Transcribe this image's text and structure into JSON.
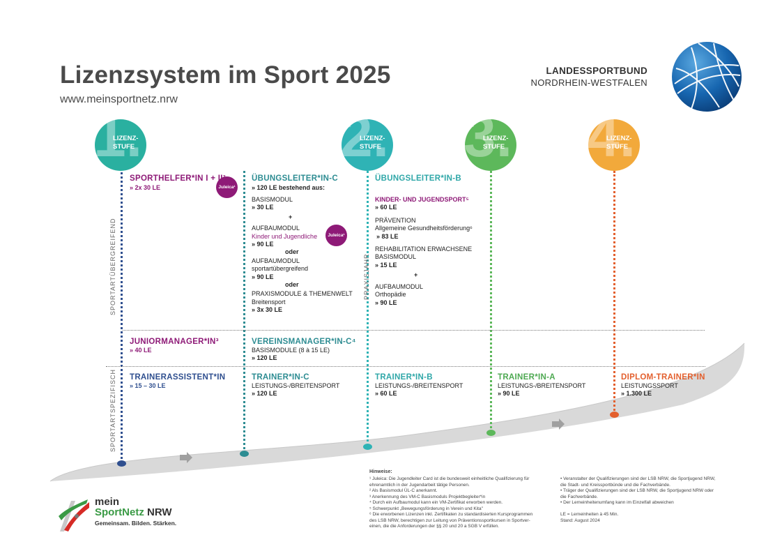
{
  "header": {
    "title": "Lizenzsystem im Sport 2025",
    "url": "www.meinsportnetz.nrw",
    "org_line1": "LANDESSPORTBUND",
    "org_line2": "NORDRHEIN-WESTFALEN"
  },
  "stages": [
    {
      "number": "1.",
      "label1": "LIZENZ-",
      "label2": "STUFE",
      "color": "#2ab0a0"
    },
    {
      "number": "2.",
      "label1": "LIZENZ-",
      "label2": "STUFE",
      "color": "#2fb3b5"
    },
    {
      "number": "3.",
      "label1": "LIZENZ-",
      "label2": "STUFE",
      "color": "#5db85b"
    },
    {
      "number": "4.",
      "label1": "LIZENZ-",
      "label2": "STUFE",
      "color": "#f2a93b"
    }
  ],
  "side_labels": {
    "general": "SPORTARTÜBERGREIFEND",
    "specific": "SPORTARTSPEZIFISCH",
    "practice": "PRAXISJAHR"
  },
  "juleica": "Juleica¹",
  "col1": {
    "sporthelfer_title": "SPORTHELFER*IN I + II²",
    "sporthelfer_le": "» 2x 30 LE",
    "junior_title": "JUNIORMANAGER*IN³",
    "junior_le": "» 40 LE",
    "assist_title": "TRAINERASSISTENT*IN",
    "assist_le": "» 15 – 30 LE"
  },
  "col2": {
    "title": "ÜBUNGSLEITER*IN-C",
    "sub": "» 120 LE bestehend aus:",
    "basis": "BASISMODUL",
    "basis_le": "» 30 LE",
    "plus": "+",
    "aufbau": "AUFBAUMODUL",
    "aufbau_kj": "Kinder und Jugendliche",
    "aufbau_le": "» 90 LE",
    "oder1": "oder",
    "aufbau2": "AUFBAUMODUL",
    "aufbau2_sub": "sportartübergreifend",
    "aufbau2_le": "» 90 LE",
    "oder2": "oder",
    "praxis": "PRAXISMODULE & THEMENWELT",
    "praxis_sub": "Breitensport",
    "praxis_le": "» 3x 30 LE",
    "vm_title": "VEREINSMANAGER*IN-C⁴",
    "vm_sub": "BASISMODULE (8 à 15 LE)",
    "vm_le": "» 120 LE",
    "tc_title": "TRAINER*IN-C",
    "tc_sub": "LEISTUNGS-/BREITENSPORT",
    "tc_le": "» 120 LE"
  },
  "col3": {
    "title": "ÜBUNGSLEITER*IN-B",
    "kj": "KINDER- UND JUGENDSPORT⁵",
    "kj_le": "» 60 LE",
    "prev": "PRÄVENTION",
    "prev_sub": "Allgemeine Gesundheitsförderung⁶",
    "prev_le": "» 83 LE",
    "reha": "REHABILITATION ERWACHSENE",
    "reha_sub": "BASISMODUL",
    "reha_le": "» 15 LE",
    "plus": "+",
    "aufbau": "AUFBAUMODUL",
    "aufbau_sub": "Orthopädie",
    "aufbau_le": "» 90 LE",
    "tb_title": "TRAINER*IN-B",
    "tb_sub": "LEISTUNGS-/BREITENSPORT",
    "tb_le": "» 60 LE"
  },
  "col4": {
    "title": "TRAINER*IN-A",
    "sub": "LEISTUNGS-/BREITENSPORT",
    "le": "» 90 LE"
  },
  "col5": {
    "title": "DIPLOM-TRAINER*IN",
    "sub": "LEISTUNGSSPORT",
    "le": "» 1.300 LE"
  },
  "footnotes": {
    "heading": "Hinweise:",
    "left": [
      "¹  Juleica: Die Jugendleiter Card ist die bundesweit einheitliche Qualifizierung für",
      "    ehrenamtlich in der Jugendarbeit tätige Personen.",
      "²  Als Basismodul ÜL-C anerkannt.",
      "³  Anerkennung des VM-C Basismoduls Projektbegleiter*in",
      "⁴  Durch ein Aufbaumodul kann ein VM-Zertifikat erworben werden.",
      "⁵  Schwerpunkt „Bewegungsförderung in Verein und Kita\"",
      "⁶  Die erworbenen Lizenzen inkl. Zertifikaten zu standardisierten  Kursprogrammen",
      "    des LSB NRW, berechtigen zur Leitung von Präventionssportkursen in Sportver-",
      "    einen, die die Anforderungen der §§ 20 und 20 a SGB V erfüllen."
    ],
    "right": [
      "•  Veranstalter der Qualifizierungen sind der LSB NRW, die Sportjugend NRW,",
      "    die Stadt- und Kreissportbünde und die Fachverbände.",
      "•  Träger der Qualifizierungen sind der LSB NRW, die Sportjugend NRW oder",
      "    die Fachverbände.",
      "•  Der Lerneinheitenumfang kann im Einzelfall abweichen",
      "",
      "LE = Lerneinheiten à 45 Min.",
      "Stand: August 2024"
    ]
  },
  "logo": {
    "line1": "mein",
    "line2a": "SportNetz",
    "line2b": " NRW",
    "line3": "Gemeinsam. Bilden. Stärken."
  }
}
